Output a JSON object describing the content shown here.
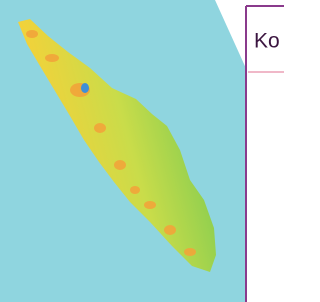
{
  "card": {
    "text": "Ko"
  }
}
